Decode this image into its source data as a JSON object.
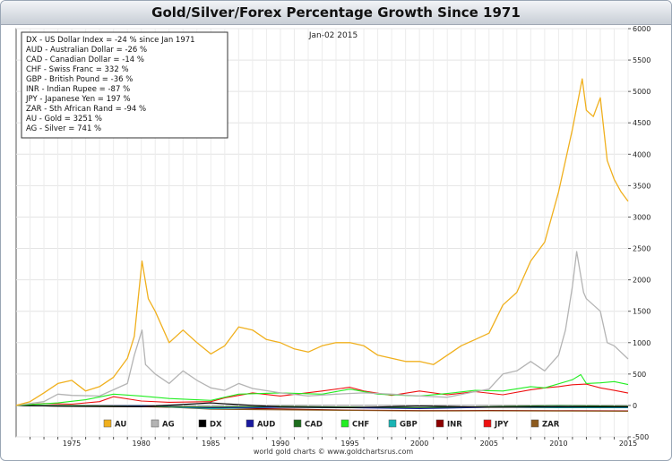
{
  "chart_data": {
    "type": "line",
    "title": "Gold/Silver/Forex Percentage Growth Since 1971",
    "date_label": "Jan-02 2015",
    "footer": "world gold charts © www.goldchartsrus.com",
    "x_ticks": [
      "1975",
      "1980",
      "1985",
      "1990",
      "1995",
      "2000",
      "2005",
      "2010",
      "2015"
    ],
    "y_ticks": [
      "-500",
      "0",
      "500",
      "1000",
      "1500",
      "2000",
      "2500",
      "3000",
      "3500",
      "4000",
      "4500",
      "5000",
      "5500",
      "6000"
    ],
    "xlim": [
      1971,
      2015
    ],
    "ylim": [
      -500,
      6000
    ],
    "grid": true,
    "info_box": [
      "DX - US Dollar Index = -24 % since Jan 1971",
      "AUD - Australian Dollar = -26 %",
      "CAD - Canadian Dollar = -14 %",
      "CHF - Swiss Franc = 332 %",
      "GBP - British Pound = -36 %",
      "INR - Indian Rupee = -87 %",
      "JPY - Japanese Yen = 197 %",
      "ZAR - Sth African Rand = -94 %",
      "AU - Gold = 3251 %",
      "AG - Silver = 741 %"
    ],
    "legend_placement": "bottom",
    "series": [
      {
        "name": "AU",
        "color": "#f0b01e",
        "x": [
          1971,
          1972,
          1973,
          1974,
          1975,
          1976,
          1977,
          1978,
          1979,
          1979.5,
          1980.05,
          1980.5,
          1981,
          1982,
          1983,
          1984,
          1985,
          1986,
          1987,
          1988,
          1989,
          1990,
          1991,
          1992,
          1993,
          1994,
          1995,
          1996,
          1997,
          1998,
          1999,
          2000,
          2001,
          2002,
          2003,
          2004,
          2005,
          2006,
          2007,
          2008,
          2009,
          2010,
          2011,
          2011.7,
          2012,
          2012.5,
          2013,
          2013.5,
          2014,
          2014.5,
          2015
        ],
        "values": [
          0,
          60,
          200,
          350,
          400,
          230,
          300,
          450,
          750,
          1100,
          2300,
          1700,
          1500,
          1000,
          1200,
          1000,
          820,
          950,
          1250,
          1200,
          1050,
          1000,
          900,
          850,
          950,
          1000,
          1000,
          950,
          800,
          750,
          700,
          700,
          650,
          800,
          950,
          1050,
          1150,
          1600,
          1800,
          2300,
          2600,
          3400,
          4400,
          5200,
          4700,
          4600,
          4900,
          3900,
          3600,
          3400,
          3250
        ]
      },
      {
        "name": "AG",
        "color": "#b4b4b4",
        "x": [
          1971,
          1973,
          1974,
          1975,
          1977,
          1979,
          1979.5,
          1980.05,
          1980.3,
          1981,
          1982,
          1983,
          1984,
          1985,
          1986,
          1987,
          1988,
          1990,
          1992,
          1994,
          1996,
          1998,
          2000,
          2002,
          2004,
          2005,
          2006,
          2007,
          2008,
          2009,
          2010,
          2010.5,
          2011,
          2011.3,
          2011.8,
          2012,
          2013,
          2013.5,
          2014,
          2015
        ],
        "values": [
          0,
          60,
          180,
          160,
          150,
          350,
          800,
          1200,
          650,
          500,
          350,
          550,
          400,
          280,
          240,
          350,
          270,
          200,
          150,
          180,
          200,
          180,
          150,
          130,
          220,
          260,
          500,
          550,
          700,
          550,
          800,
          1200,
          1900,
          2450,
          1800,
          1700,
          1500,
          1000,
          950,
          740
        ]
      },
      {
        "name": "DX",
        "color": "#000000",
        "x": [
          1971,
          1975,
          1980,
          1985,
          1990,
          1995,
          2000,
          2005,
          2010,
          2015
        ],
        "values": [
          0,
          -15,
          -20,
          40,
          -25,
          -35,
          -10,
          -28,
          -25,
          -24
        ]
      },
      {
        "name": "AUD",
        "color": "#1a1aa0",
        "x": [
          1971,
          1975,
          1980,
          1985,
          1990,
          1995,
          2000,
          2005,
          2010,
          2015
        ],
        "values": [
          0,
          -5,
          -5,
          -35,
          -30,
          -35,
          -50,
          -30,
          -20,
          -26
        ]
      },
      {
        "name": "CAD",
        "color": "#1e6e1e",
        "x": [
          1971,
          1975,
          1980,
          1985,
          1990,
          1995,
          2000,
          2005,
          2010,
          2015
        ],
        "values": [
          0,
          -3,
          -15,
          -25,
          -15,
          -25,
          -35,
          -20,
          -2,
          -14
        ]
      },
      {
        "name": "CHF",
        "color": "#22ee22",
        "x": [
          1971,
          1974,
          1976,
          1978,
          1980,
          1982,
          1985,
          1987,
          1990,
          1993,
          1995,
          1997,
          2000,
          2002,
          2004,
          2006,
          2008,
          2009,
          2011,
          2011.6,
          2012,
          2013,
          2014,
          2015
        ],
        "values": [
          0,
          40,
          90,
          180,
          150,
          110,
          80,
          180,
          200,
          180,
          260,
          180,
          150,
          190,
          240,
          230,
          300,
          280,
          410,
          490,
          350,
          360,
          380,
          332
        ]
      },
      {
        "name": "GBP",
        "color": "#1ab4b4",
        "x": [
          1971,
          1975,
          1980,
          1985,
          1990,
          1995,
          2000,
          2005,
          2010,
          2015
        ],
        "values": [
          0,
          -12,
          -5,
          -50,
          -28,
          -35,
          -38,
          -25,
          -36,
          -36
        ]
      },
      {
        "name": "INR",
        "color": "#8c0000",
        "x": [
          1971,
          1975,
          1980,
          1985,
          1990,
          1995,
          2000,
          2005,
          2010,
          2015
        ],
        "values": [
          0,
          -15,
          -20,
          -40,
          -55,
          -75,
          -82,
          -81,
          -84,
          -87
        ]
      },
      {
        "name": "JPY",
        "color": "#ee1111",
        "x": [
          1971,
          1973,
          1975,
          1977,
          1978,
          1980,
          1982,
          1985,
          1986,
          1988,
          1990,
          1993,
          1995,
          1996,
          1998,
          2000,
          2002,
          2004,
          2006,
          2008,
          2009,
          2010,
          2011,
          2012,
          2013,
          2014,
          2015
        ],
        "values": [
          0,
          30,
          20,
          60,
          140,
          70,
          50,
          60,
          120,
          200,
          150,
          230,
          290,
          230,
          160,
          230,
          170,
          220,
          170,
          250,
          280,
          300,
          330,
          340,
          280,
          240,
          197
        ]
      },
      {
        "name": "ZAR",
        "color": "#8c5a1e",
        "x": [
          1971,
          1975,
          1980,
          1985,
          1990,
          1995,
          2000,
          2005,
          2010,
          2015
        ],
        "values": [
          0,
          -5,
          -5,
          -60,
          -70,
          -80,
          -88,
          -87,
          -90,
          -94
        ]
      }
    ]
  }
}
